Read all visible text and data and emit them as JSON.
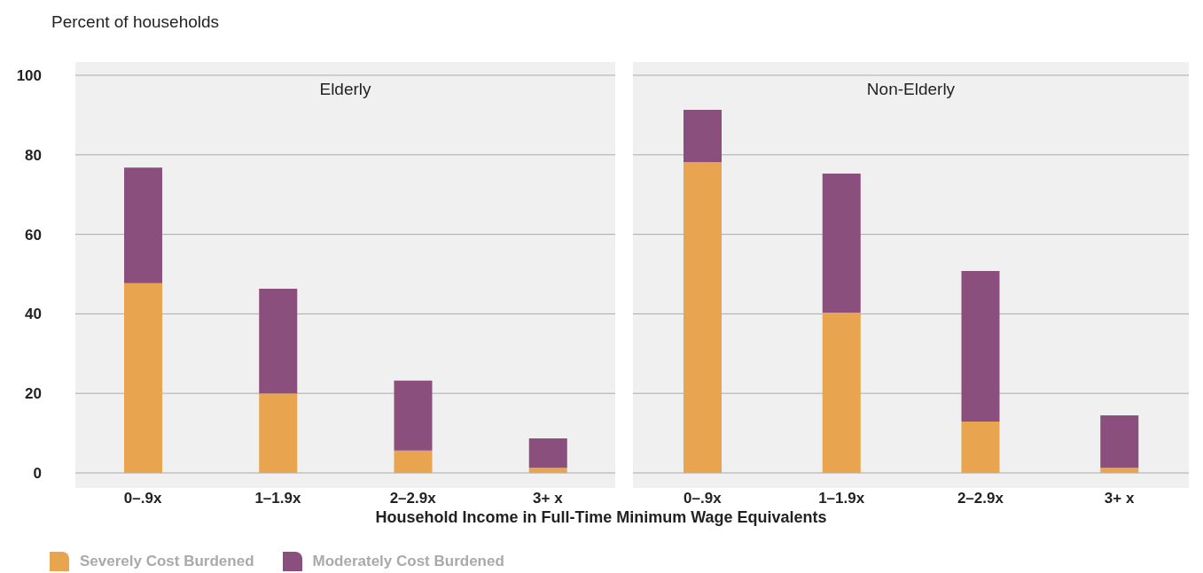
{
  "chart_data": [
    {
      "type": "bar",
      "title": "Elderly",
      "ylabel": "Percent of households",
      "xlabel": "Household Income in Full-Time Minimum Wage Equivalents",
      "categories": [
        "0–.9x",
        "1–1.9x",
        "2–2.9x",
        "3+ x"
      ],
      "stacked": true,
      "ylim": [
        0,
        100
      ],
      "yticks": [
        0,
        20,
        40,
        60,
        80,
        100
      ],
      "grid": "y",
      "legend": "bottom left",
      "series": [
        {
          "name": "Severely Cost Burdened",
          "color": "#e8a44e",
          "values": [
            47.7,
            20.0,
            5.6,
            1.3
          ]
        },
        {
          "name": "Moderately Cost Burdened",
          "color": "#8b4f7d",
          "values": [
            29.1,
            26.3,
            17.6,
            7.4
          ]
        }
      ]
    },
    {
      "type": "bar",
      "title": "Non-Elderly",
      "categories": [
        "0–.9x",
        "1–1.9x",
        "2–2.9x",
        "3+ x"
      ],
      "stacked": true,
      "ylim": [
        0,
        100
      ],
      "yticks": [
        0,
        20,
        40,
        60,
        80,
        100
      ],
      "grid": "y",
      "tick_labels": "x",
      "series": [
        {
          "color": "#e8a44e",
          "values": [
            78.2,
            40.3,
            12.9,
            1.3
          ]
        },
        {
          "color": "#8b4f7d",
          "values": [
            13.1,
            35.0,
            37.9,
            13.2
          ]
        }
      ]
    }
  ]
}
